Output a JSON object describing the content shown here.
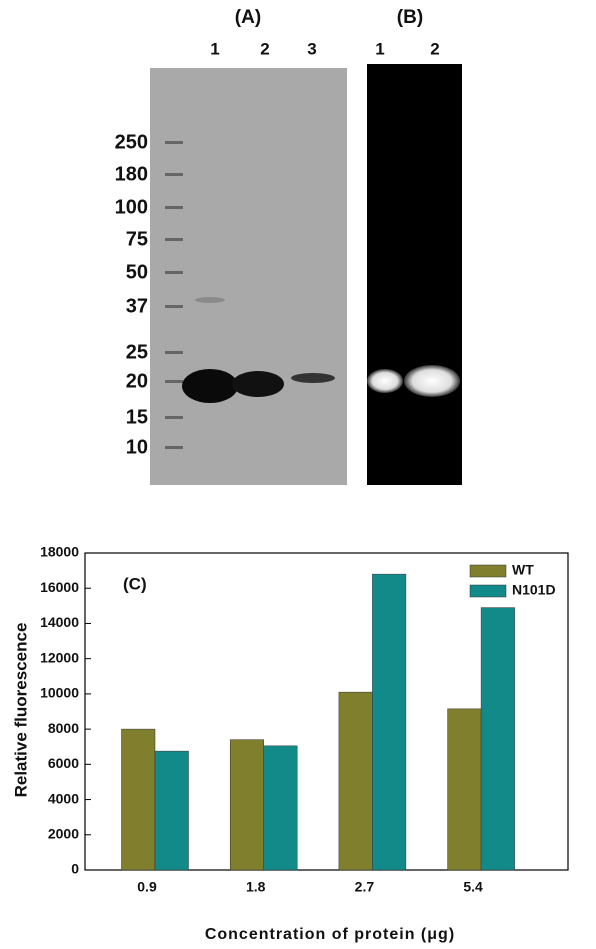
{
  "gel": {
    "panel_a": "(A)",
    "panel_b": "(B)",
    "lanes_a": [
      "1",
      "2",
      "3"
    ],
    "lanes_b": [
      "1",
      "2"
    ],
    "markers": [
      "250",
      "180",
      "100",
      "75",
      "50",
      "37",
      "25",
      "20",
      "15",
      "10"
    ]
  },
  "chart_data": {
    "type": "bar",
    "annotation": "(C)",
    "y_label": "Relative fluorescence",
    "x_label": "Concentration of protein (μg)",
    "categories": [
      "0.9",
      "1.8",
      "2.7",
      "5.4"
    ],
    "series": [
      {
        "name": "WT",
        "color": "#7f7f2e",
        "values": [
          8000,
          7400,
          10100,
          9150
        ]
      },
      {
        "name": "N101D",
        "color": "#138a8a",
        "values": [
          6750,
          7050,
          16800,
          14900
        ]
      }
    ],
    "ylim": [
      0,
      18000
    ],
    "yticks": [
      0,
      2000,
      4000,
      6000,
      8000,
      10000,
      12000,
      14000,
      16000,
      18000
    ],
    "legend": "upper right"
  }
}
